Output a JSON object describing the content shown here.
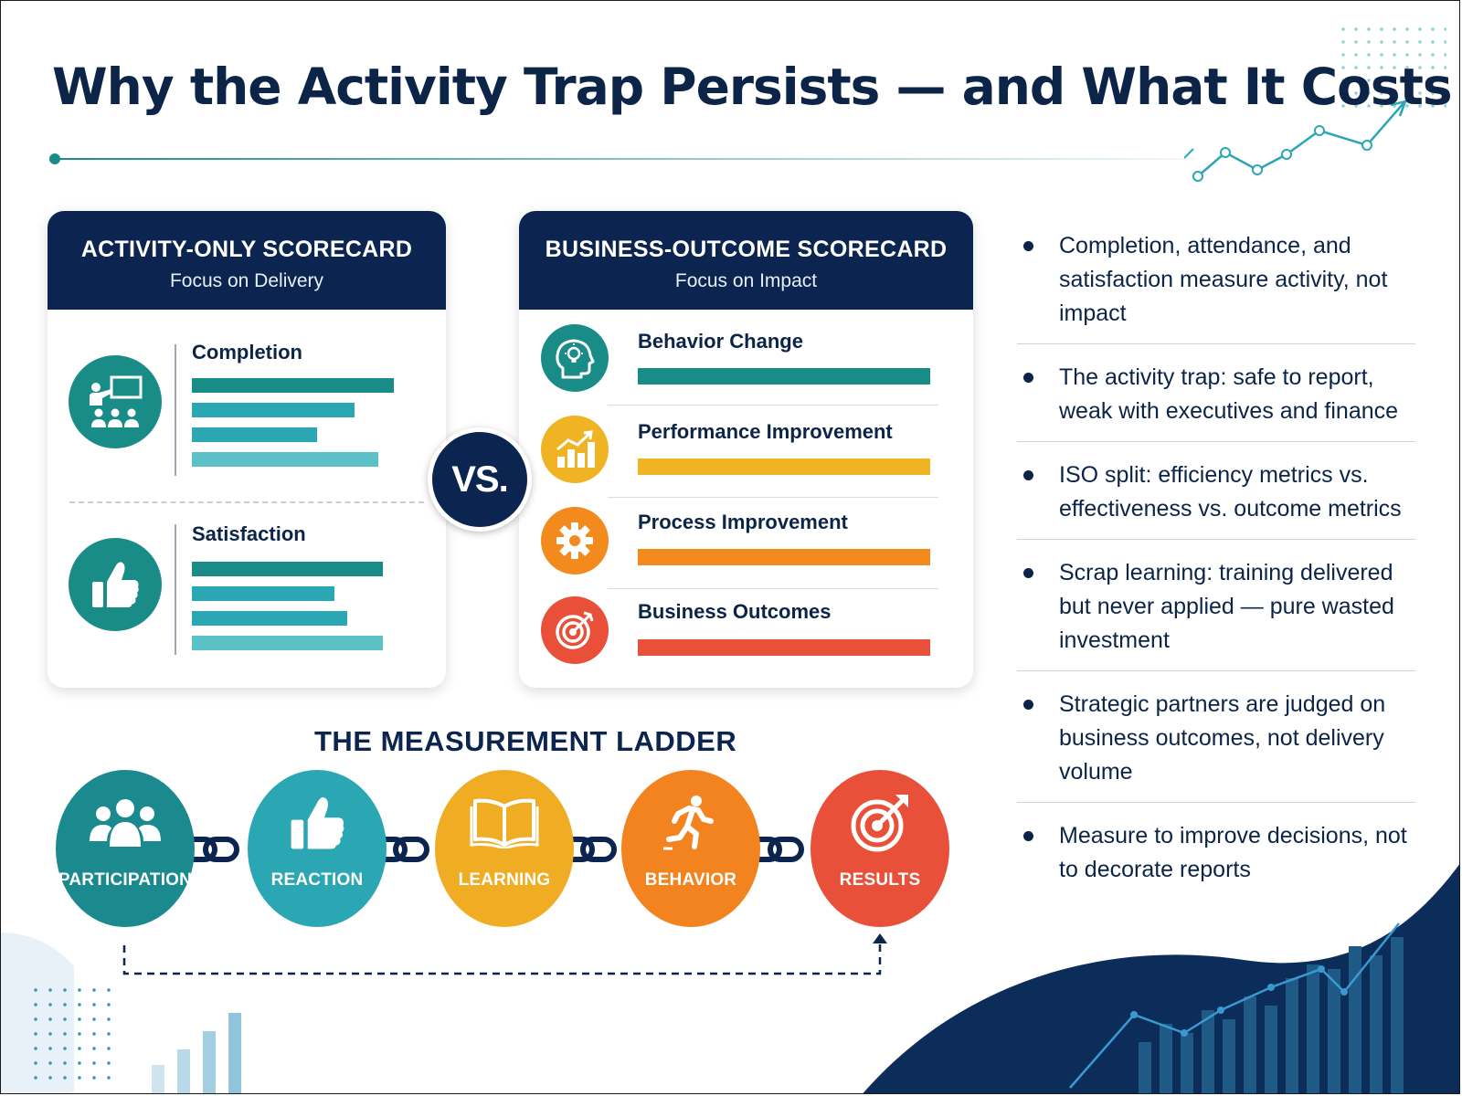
{
  "title": "Why the Activity Trap Persists — and What It Costs",
  "activity_card": {
    "title": "ACTIVITY-ONLY SCORECARD",
    "subtitle": "Focus on Delivery",
    "metrics": [
      {
        "label": "Completion",
        "icon": "presentation-icon",
        "bars": [
          0.92,
          0.74,
          0.57,
          0.85
        ]
      },
      {
        "label": "Satisfaction",
        "icon": "thumbs-up-icon",
        "bars": [
          0.87,
          0.65,
          0.71,
          0.87
        ]
      }
    ]
  },
  "vs_label": "VS.",
  "outcome_card": {
    "title": "BUSINESS-OUTCOME SCORECARD",
    "subtitle": "Focus on Impact",
    "metrics": [
      {
        "label": "Behavior Change",
        "icon": "head-lightbulb-icon",
        "color": "#1a8c87"
      },
      {
        "label": "Performance Improvement",
        "icon": "rising-bar-chart-icon",
        "color": "#f0b323"
      },
      {
        "label": "Process Improvement",
        "icon": "gear-icon",
        "color": "#f28a1e"
      },
      {
        "label": "Business Outcomes",
        "icon": "target-icon",
        "color": "#e8503a"
      }
    ]
  },
  "bullets": [
    "Completion, attendance, and satisfaction measure activity, not impact",
    "The activity trap: safe to report, weak with executives and finance",
    "ISO split: efficiency metrics vs. effectiveness vs. outcome metrics",
    "Scrap learning: training delivered but never applied — pure wasted investment",
    "Strategic partners are judged on business outcomes, not delivery volume",
    "Measure to improve decisions, not to decorate reports"
  ],
  "ladder": {
    "title": "THE MEASUREMENT LADDER",
    "steps": [
      {
        "label": "PARTICIPATION",
        "icon": "people-group-icon",
        "color": "#1b8a8f"
      },
      {
        "label": "REACTION",
        "icon": "thumbs-up-icon",
        "color": "#2aa7b3"
      },
      {
        "label": "LEARNING",
        "icon": "open-book-icon",
        "color": "#f0ad24"
      },
      {
        "label": "BEHAVIOR",
        "icon": "running-person-icon",
        "color": "#f2831f"
      },
      {
        "label": "RESULTS",
        "icon": "target-arrow-icon",
        "color": "#e8503a"
      }
    ]
  },
  "colors": {
    "navy": "#0c2450",
    "teal": "#1a8c87",
    "teal_light": "#5cc0c7"
  }
}
